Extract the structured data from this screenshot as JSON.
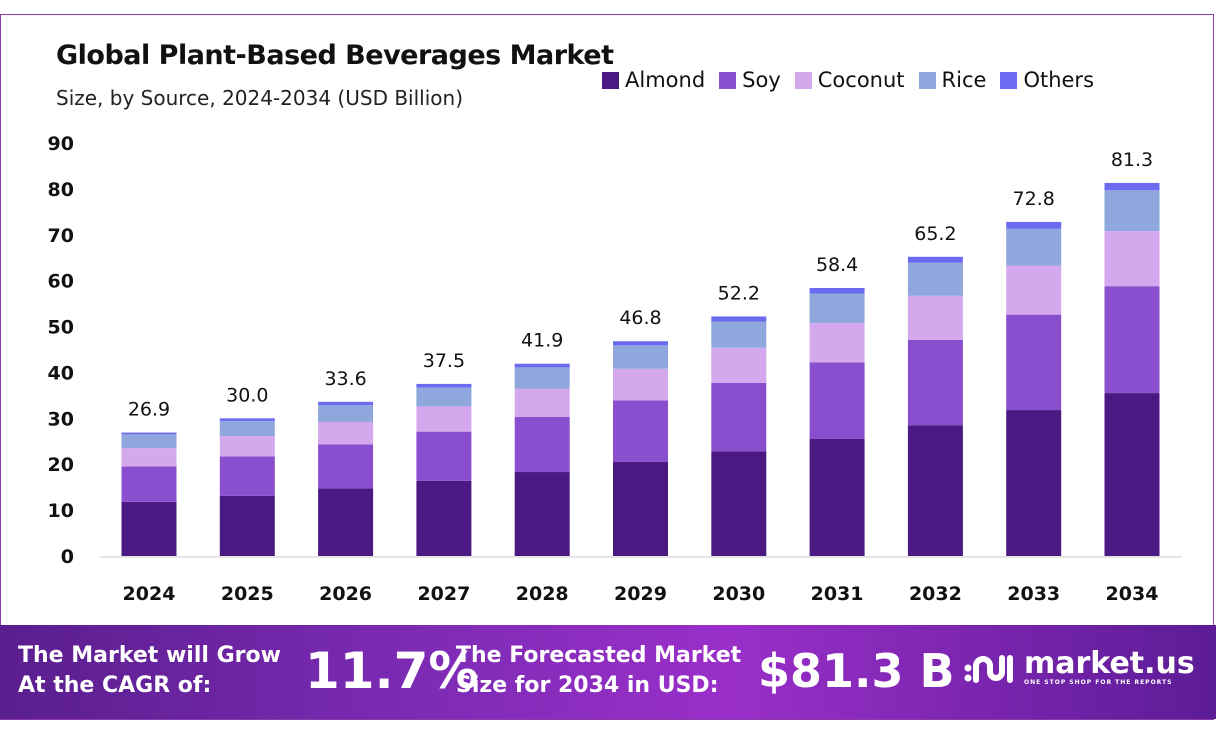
{
  "chart_data": {
    "type": "bar",
    "stacked": true,
    "title": "Global Plant-Based Beverages Market",
    "subtitle": "Size, by Source, 2024-2034 (USD Billion)",
    "categories": [
      "2024",
      "2025",
      "2026",
      "2027",
      "2028",
      "2029",
      "2030",
      "2031",
      "2032",
      "2033",
      "2034"
    ],
    "series": [
      {
        "name": "Almond",
        "color": "#4a1a82",
        "values": [
          11.8,
          13.1,
          14.7,
          16.4,
          18.3,
          20.5,
          22.8,
          25.5,
          28.5,
          31.8,
          35.5
        ]
      },
      {
        "name": "Soy",
        "color": "#8a4fcf",
        "values": [
          7.7,
          8.6,
          9.6,
          10.7,
          12.0,
          13.4,
          14.9,
          16.7,
          18.6,
          20.8,
          23.3
        ]
      },
      {
        "name": "Coconut",
        "color": "#d3a8ec",
        "values": [
          4.0,
          4.4,
          4.9,
          5.5,
          6.2,
          6.9,
          7.7,
          8.6,
          9.6,
          10.7,
          12.0
        ]
      },
      {
        "name": "Rice",
        "color": "#8fa7dd",
        "values": [
          3.0,
          3.3,
          3.7,
          4.1,
          4.6,
          5.1,
          5.7,
          6.4,
          7.2,
          8.0,
          8.9
        ]
      },
      {
        "name": "Others",
        "color": "#6b6af0",
        "values": [
          0.4,
          0.6,
          0.7,
          0.8,
          0.8,
          0.9,
          1.1,
          1.2,
          1.3,
          1.5,
          1.6
        ]
      }
    ],
    "totals": [
      "26.9",
      "30.0",
      "33.6",
      "37.5",
      "41.9",
      "46.8",
      "52.2",
      "58.4",
      "65.2",
      "72.8",
      "81.3"
    ],
    "yticks": [
      "0",
      "10",
      "20",
      "30",
      "40",
      "50",
      "60",
      "70",
      "80",
      "90"
    ],
    "ylim": [
      0,
      90
    ],
    "grid": false,
    "legend": "top-right"
  },
  "footer": {
    "cagr_label_1": "The Market will Grow",
    "cagr_label_2": "At the CAGR of:",
    "cagr_value": "11.7%",
    "forecast_label_1": "The Forecasted Market",
    "forecast_label_2": "Size for 2034 in USD:",
    "forecast_value": "$81.3 B",
    "logo_name": "market.us",
    "logo_tag": "ONE STOP SHOP FOR THE REPORTS"
  }
}
